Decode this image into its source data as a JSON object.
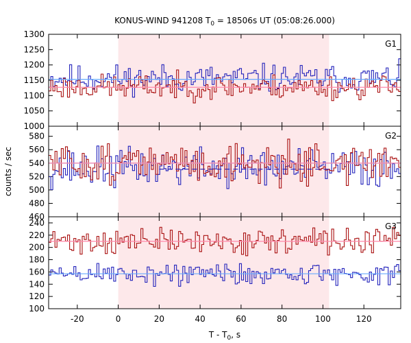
{
  "chart_data": {
    "type": "line",
    "title_main": "KONUS-WIND 941208 T",
    "title_sub": "0",
    "title_rest": " = 18506s UT (05:08:26.000)",
    "xlabel_main": "T - T",
    "xlabel_sub": "0",
    "xlabel_rest": ", s",
    "ylabel": "counts / sec",
    "xlim": [
      -34,
      138
    ],
    "xticks": [
      -20,
      0,
      20,
      40,
      60,
      80,
      100,
      120
    ],
    "highlight_interval": [
      0,
      103
    ],
    "colors": {
      "highlight": "#fde8ea",
      "series_a": "#2222bb",
      "series_b": "#aa1111",
      "fit_a": "#66aaff",
      "fit_b": "#ff88aa"
    },
    "panels": [
      {
        "label": "G1",
        "ylim": [
          1000,
          1300
        ],
        "yticks": [
          1000,
          1050,
          1100,
          1150,
          1200,
          1250,
          1300
        ],
        "series": [
          {
            "color_key": "series_a",
            "mean": 1156,
            "amp": 28,
            "seed": 11
          },
          {
            "color_key": "series_b",
            "mean": 1128,
            "amp": 25,
            "seed": 23
          }
        ],
        "fits": [
          {
            "color_key": "fit_a",
            "y": 1153
          },
          {
            "color_key": "fit_b",
            "y": 1127
          }
        ],
        "dashed": []
      },
      {
        "label": "G2",
        "ylim": [
          460,
          595
        ],
        "yticks": [
          460,
          480,
          500,
          520,
          540,
          560,
          580
        ],
        "series": [
          {
            "color_key": "series_a",
            "mean": 533,
            "amp": 18,
            "seed": 37
          },
          {
            "color_key": "series_b",
            "mean": 540,
            "amp": 18,
            "seed": 51
          }
        ],
        "fits": [
          {
            "color_key": "fit_a",
            "y": 540
          },
          {
            "color_key": "fit_b",
            "y": 540
          }
        ],
        "dashed": [
          {
            "color_key": "series_a",
            "y": 531,
            "from": 20,
            "to": 103
          }
        ]
      },
      {
        "label": "G3",
        "ylim": [
          100,
          250
        ],
        "yticks": [
          100,
          120,
          140,
          160,
          180,
          200,
          220,
          240
        ],
        "series": [
          {
            "color_key": "series_b",
            "mean": 210,
            "amp": 13,
            "seed": 71
          },
          {
            "color_key": "series_a",
            "mean": 157,
            "amp": 12,
            "seed": 89
          }
        ],
        "fits": [
          {
            "color_key": "fit_b",
            "y": 210
          },
          {
            "color_key": "fit_a",
            "y": 157
          }
        ],
        "dashed": []
      }
    ]
  }
}
